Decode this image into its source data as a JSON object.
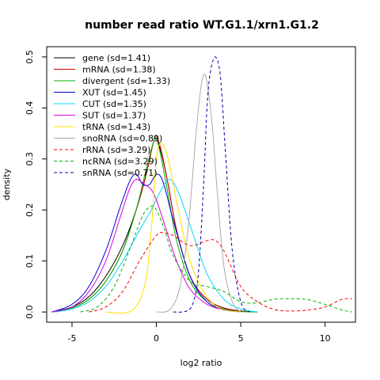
{
  "chart_data": {
    "type": "line",
    "title": "number read ratio WT.G1.1/xrn1.G1.2",
    "xlabel": "log2 ratio",
    "ylabel": "density",
    "xlim": [
      -6.5,
      11.8
    ],
    "ylim": [
      -0.02,
      0.52
    ],
    "xticks": [
      -5,
      0,
      5,
      10
    ],
    "yticks": [
      0.0,
      0.1,
      0.2,
      0.3,
      0.4,
      0.5
    ],
    "xtick_labels": [
      "-5",
      "0",
      "5",
      "10"
    ],
    "ytick_labels": [
      "0.0",
      "0.1",
      "0.2",
      "0.3",
      "0.4",
      "0.5"
    ],
    "legend_position": "top-left",
    "series": [
      {
        "name": "gene (sd=1.41)",
        "color": "#000000",
        "dash": "solid",
        "x": [
          -6.2,
          -5,
          -4,
          -3,
          -2,
          -1.2,
          -0.6,
          -0.2,
          0.0,
          0.3,
          0.7,
          1.2,
          2,
          3,
          4,
          5,
          6
        ],
        "y": [
          0.0,
          0.01,
          0.03,
          0.07,
          0.13,
          0.2,
          0.27,
          0.33,
          0.34,
          0.31,
          0.25,
          0.16,
          0.07,
          0.025,
          0.008,
          0.002,
          0.0
        ]
      },
      {
        "name": "mRNA (sd=1.38)",
        "color": "#cc0000",
        "dash": "solid",
        "x": [
          -6.2,
          -5,
          -4,
          -3,
          -2,
          -1.2,
          -0.6,
          -0.2,
          0.0,
          0.3,
          0.7,
          1.2,
          2,
          3,
          4,
          5,
          6
        ],
        "y": [
          0.0,
          0.008,
          0.025,
          0.06,
          0.12,
          0.2,
          0.27,
          0.33,
          0.345,
          0.315,
          0.25,
          0.16,
          0.07,
          0.025,
          0.008,
          0.002,
          0.0
        ]
      },
      {
        "name": "divergent (sd=1.33)",
        "color": "#00b000",
        "dash": "solid",
        "x": [
          -6.2,
          -5,
          -4,
          -3,
          -2,
          -1.2,
          -0.6,
          -0.2,
          0.0,
          0.3,
          0.7,
          1.2,
          2,
          3,
          4,
          5,
          6
        ],
        "y": [
          0.0,
          0.008,
          0.025,
          0.06,
          0.12,
          0.2,
          0.28,
          0.33,
          0.34,
          0.3,
          0.23,
          0.14,
          0.06,
          0.02,
          0.006,
          0.001,
          0.0
        ]
      },
      {
        "name": "XUT (sd=1.45)",
        "color": "#0000dd",
        "dash": "solid",
        "x": [
          -6.2,
          -5,
          -4,
          -3,
          -2.2,
          -1.6,
          -1.2,
          -0.8,
          -0.4,
          0.0,
          0.4,
          1.0,
          2,
          3,
          4,
          5
        ],
        "y": [
          0.0,
          0.015,
          0.05,
          0.12,
          0.2,
          0.255,
          0.27,
          0.25,
          0.25,
          0.27,
          0.255,
          0.18,
          0.07,
          0.02,
          0.005,
          0.0
        ]
      },
      {
        "name": "CUT (sd=1.35)",
        "color": "#00d8ff",
        "dash": "solid",
        "x": [
          -6,
          -5,
          -4,
          -3,
          -2,
          -1,
          -0.3,
          0.3,
          0.8,
          1.3,
          2,
          3,
          4,
          5,
          6
        ],
        "y": [
          0.0,
          0.006,
          0.02,
          0.05,
          0.1,
          0.16,
          0.2,
          0.24,
          0.26,
          0.235,
          0.17,
          0.075,
          0.025,
          0.006,
          0.0
        ]
      },
      {
        "name": "SUT (sd=1.37)",
        "color": "#dd00dd",
        "dash": "solid",
        "x": [
          -6.2,
          -5,
          -4,
          -3,
          -2.2,
          -1.6,
          -1.2,
          -0.7,
          -0.3,
          0.0,
          0.5,
          1.2,
          2,
          3,
          4,
          5
        ],
        "y": [
          0.0,
          0.01,
          0.04,
          0.1,
          0.18,
          0.24,
          0.26,
          0.25,
          0.24,
          0.22,
          0.17,
          0.1,
          0.045,
          0.015,
          0.004,
          0.0
        ]
      },
      {
        "name": "tRNA (sd=1.43)",
        "color": "#ffe000",
        "dash": "solid",
        "x": [
          -3,
          -1.5,
          -0.7,
          -0.3,
          0.0,
          0.3,
          0.7,
          1.3,
          2,
          2.8,
          3.5,
          4.2,
          5
        ],
        "y": [
          0.0,
          0.002,
          0.05,
          0.16,
          0.3,
          0.33,
          0.3,
          0.2,
          0.1,
          0.04,
          0.012,
          0.003,
          0.0
        ]
      },
      {
        "name": "snoRNA (sd=0.89)",
        "color": "#aaaaaa",
        "dash": "solid",
        "x": [
          0.0,
          0.8,
          1.4,
          1.9,
          2.3,
          2.6,
          2.8,
          3.0,
          3.3,
          3.6,
          4.0,
          4.5,
          5.0
        ],
        "y": [
          0.0,
          0.005,
          0.05,
          0.17,
          0.33,
          0.43,
          0.465,
          0.45,
          0.37,
          0.24,
          0.09,
          0.02,
          0.0
        ]
      },
      {
        "name": "rRNA (sd=3.29)",
        "color": "#ff0000",
        "dash": "dashed",
        "x": [
          -4,
          -3,
          -2,
          -1,
          0,
          0.5,
          1,
          2,
          3,
          3.5,
          4,
          5,
          6,
          7,
          8,
          9,
          10,
          11,
          11.6
        ],
        "y": [
          0.0,
          0.01,
          0.04,
          0.1,
          0.15,
          0.155,
          0.15,
          0.13,
          0.14,
          0.14,
          0.12,
          0.05,
          0.02,
          0.005,
          0.002,
          0.004,
          0.01,
          0.025,
          0.026
        ]
      },
      {
        "name": "ncRNA (sd=3.29)",
        "color": "#00b000",
        "dash": "dashed",
        "x": [
          -4.5,
          -3.5,
          -2.5,
          -1.5,
          -0.8,
          -0.3,
          0.0,
          0.5,
          1,
          2,
          3,
          4,
          5,
          6,
          7,
          8,
          9,
          10,
          11,
          11.6
        ],
        "y": [
          0.0,
          0.01,
          0.05,
          0.13,
          0.19,
          0.207,
          0.2,
          0.16,
          0.11,
          0.06,
          0.05,
          0.04,
          0.02,
          0.018,
          0.025,
          0.026,
          0.024,
          0.015,
          0.004,
          0.0
        ]
      },
      {
        "name": "snRNA (sd=0.71)",
        "color": "#0000aa",
        "dash": "dashed",
        "x": [
          1.0,
          1.8,
          2.2,
          2.5,
          2.8,
          3.0,
          3.2,
          3.5,
          3.8,
          4.1,
          4.5,
          5.0,
          5.5
        ],
        "y": [
          0.0,
          0.002,
          0.02,
          0.08,
          0.25,
          0.4,
          0.47,
          0.5,
          0.46,
          0.31,
          0.12,
          0.02,
          0.0
        ]
      }
    ]
  }
}
